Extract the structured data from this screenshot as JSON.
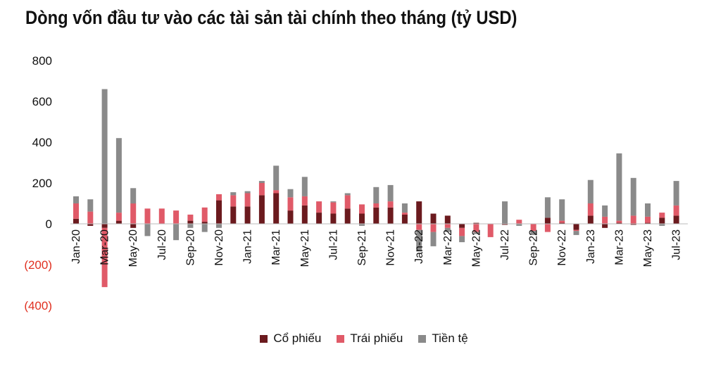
{
  "title": "Dòng vốn đầu tư vào các tài sản tài chính theo tháng (tỷ USD)",
  "chart_data": {
    "type": "bar",
    "stacked": true,
    "ylim": [
      -400,
      800
    ],
    "y_ticks": [
      800,
      600,
      400,
      200,
      0,
      -200,
      -400
    ],
    "y_tick_labels": [
      "800",
      "600",
      "400",
      "200",
      "0",
      "(200)",
      "(400)"
    ],
    "categories": [
      "Jan-20",
      "Feb-20",
      "Mar-20",
      "Apr-20",
      "May-20",
      "Jun-20",
      "Jul-20",
      "Aug-20",
      "Sep-20",
      "Oct-20",
      "Nov-20",
      "Dec-20",
      "Jan-21",
      "Feb-21",
      "Mar-21",
      "Apr-21",
      "May-21",
      "Jun-21",
      "Jul-21",
      "Aug-21",
      "Sep-21",
      "Oct-21",
      "Nov-21",
      "Dec-21",
      "Jan-22",
      "Feb-22",
      "Mar-22",
      "Apr-22",
      "May-22",
      "Jun-22",
      "Jul-22",
      "Aug-22",
      "Sep-22",
      "Oct-22",
      "Nov-22",
      "Dec-22",
      "Jan-23",
      "Feb-23",
      "Mar-23",
      "Apr-23",
      "May-23",
      "Jun-23",
      "Jul-23"
    ],
    "x_tick_labels": [
      "Jan-20",
      "",
      "Mar-20",
      "",
      "May-20",
      "",
      "Jul-20",
      "",
      "Sep-20",
      "",
      "Nov-20",
      "",
      "Jan-21",
      "",
      "Mar-21",
      "",
      "May-21",
      "",
      "Jul-21",
      "",
      "Sep-21",
      "",
      "Nov-21",
      "",
      "Jan-22",
      "",
      "Mar-22",
      "",
      "May-22",
      "",
      "Jul-22",
      "",
      "Sep-22",
      "",
      "Nov-22",
      "",
      "Jan-23",
      "",
      "Mar-23",
      "",
      "May-23",
      "",
      "Jul-23"
    ],
    "series": [
      {
        "name": "Cổ phiếu",
        "color": "#6b1a1e",
        "values": [
          25,
          -10,
          -20,
          15,
          -20,
          0,
          0,
          0,
          15,
          10,
          115,
          85,
          85,
          140,
          150,
          65,
          90,
          55,
          50,
          75,
          50,
          80,
          80,
          45,
          110,
          50,
          40,
          -20,
          5,
          0,
          -5,
          0,
          0,
          30,
          5,
          -30,
          40,
          -20,
          5,
          -5,
          5,
          30,
          40
        ]
      },
      {
        "name": "Trái phiếu",
        "color": "#e05a68",
        "values": [
          75,
          60,
          -290,
          40,
          100,
          75,
          75,
          65,
          30,
          70,
          30,
          55,
          65,
          60,
          15,
          65,
          45,
          55,
          55,
          65,
          45,
          20,
          30,
          10,
          -30,
          -40,
          -20,
          -40,
          -40,
          -65,
          0,
          20,
          -35,
          -40,
          10,
          -5,
          60,
          35,
          10,
          40,
          30,
          25,
          50
        ]
      },
      {
        "name": "Tiền tệ",
        "color": "#8a8a8a",
        "values": [
          35,
          60,
          660,
          365,
          75,
          -60,
          0,
          -80,
          -20,
          -40,
          -20,
          15,
          10,
          10,
          120,
          40,
          95,
          0,
          5,
          10,
          -10,
          80,
          80,
          45,
          -105,
          -70,
          -20,
          -30,
          -10,
          0,
          110,
          -10,
          -20,
          100,
          105,
          -20,
          115,
          55,
          330,
          185,
          65,
          -10,
          120
        ]
      }
    ]
  }
}
